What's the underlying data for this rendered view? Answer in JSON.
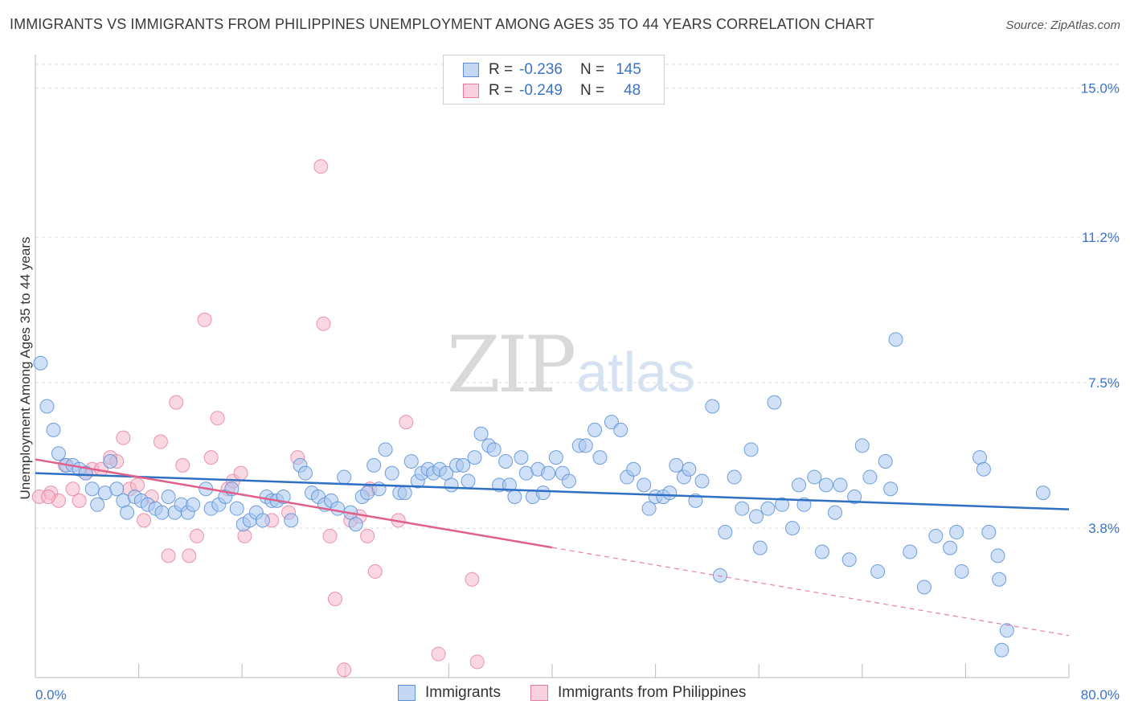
{
  "title": "IMMIGRANTS VS IMMIGRANTS FROM PHILIPPINES UNEMPLOYMENT AMONG AGES 35 TO 44 YEARS CORRELATION CHART",
  "source": "Source: ZipAtlas.com",
  "watermark": {
    "zip": "ZIP",
    "atlas": "atlas"
  },
  "legend_top": [
    {
      "r_label": "R =",
      "r_value": "-0.236",
      "n_label": "N =",
      "n_value": "145"
    },
    {
      "r_label": "R =",
      "r_value": "-0.249",
      "n_label": "N =",
      "n_value": "48"
    }
  ],
  "legend_bottom": [
    "Immigrants",
    "Immigrants from Philippines"
  ],
  "colors": {
    "blue_fill": "#a9c7ef",
    "blue_stroke": "#5b8fd6",
    "blue_line": "#2f6fc4",
    "pink_fill": "#f6b8cb",
    "pink_stroke": "#e67a9c",
    "pink_line": "#e0608a",
    "tick_label": "#3b73c6",
    "grid": "#dddddd"
  },
  "chart_data": {
    "type": "scatter",
    "title": "IMMIGRANTS VS IMMIGRANTS FROM PHILIPPINES UNEMPLOYMENT AMONG AGES 35 TO 44 YEARS CORRELATION CHART",
    "xlabel": "",
    "ylabel": "Unemployment Among Ages 35 to 44 years",
    "xlim": [
      0,
      80
    ],
    "ylim": [
      0,
      15.6
    ],
    "x_tick_labels": [
      "0.0%",
      "80.0%"
    ],
    "y_ticks": [
      3.8,
      7.5,
      11.2,
      15.0
    ],
    "y_tick_labels": [
      "3.8%",
      "7.5%",
      "11.2%",
      "15.0%"
    ],
    "grid": "horizontal dashed",
    "legend_position": "top-center",
    "series": [
      {
        "name": "Immigrants",
        "r": -0.236,
        "n": 145,
        "trend": {
          "x": [
            0,
            80
          ],
          "y": [
            5.2,
            4.28
          ]
        },
        "points": [
          [
            0.4,
            8.0
          ],
          [
            0.9,
            6.9
          ],
          [
            1.4,
            6.3
          ],
          [
            1.8,
            5.7
          ],
          [
            2.4,
            5.4
          ],
          [
            2.9,
            5.4
          ],
          [
            3.4,
            5.3
          ],
          [
            3.9,
            5.2
          ],
          [
            4.4,
            4.8
          ],
          [
            4.8,
            4.4
          ],
          [
            5.4,
            4.7
          ],
          [
            5.8,
            5.5
          ],
          [
            6.3,
            4.8
          ],
          [
            6.8,
            4.5
          ],
          [
            7.1,
            4.2
          ],
          [
            7.7,
            4.6
          ],
          [
            8.2,
            4.5
          ],
          [
            8.7,
            4.4
          ],
          [
            9.3,
            4.3
          ],
          [
            9.8,
            4.2
          ],
          [
            10.3,
            4.6
          ],
          [
            10.8,
            4.2
          ],
          [
            11.3,
            4.4
          ],
          [
            11.8,
            4.2
          ],
          [
            12.2,
            4.4
          ],
          [
            13.2,
            4.8
          ],
          [
            13.6,
            4.3
          ],
          [
            14.2,
            4.4
          ],
          [
            14.7,
            4.6
          ],
          [
            15.2,
            4.8
          ],
          [
            15.6,
            4.3
          ],
          [
            16.1,
            3.9
          ],
          [
            16.6,
            4.0
          ],
          [
            17.1,
            4.2
          ],
          [
            17.6,
            4.0
          ],
          [
            17.9,
            4.6
          ],
          [
            18.3,
            4.5
          ],
          [
            18.7,
            4.5
          ],
          [
            19.2,
            4.6
          ],
          [
            19.8,
            4.0
          ],
          [
            20.5,
            5.4
          ],
          [
            20.9,
            5.2
          ],
          [
            21.4,
            4.7
          ],
          [
            21.9,
            4.6
          ],
          [
            22.4,
            4.4
          ],
          [
            22.9,
            4.5
          ],
          [
            23.4,
            4.3
          ],
          [
            23.9,
            5.1
          ],
          [
            24.4,
            4.2
          ],
          [
            24.8,
            3.9
          ],
          [
            25.3,
            4.6
          ],
          [
            25.7,
            4.7
          ],
          [
            26.2,
            5.4
          ],
          [
            26.6,
            4.8
          ],
          [
            27.1,
            5.8
          ],
          [
            27.6,
            5.2
          ],
          [
            28.2,
            4.7
          ],
          [
            28.6,
            4.7
          ],
          [
            29.1,
            5.5
          ],
          [
            29.6,
            5.0
          ],
          [
            29.9,
            5.2
          ],
          [
            30.4,
            5.3
          ],
          [
            30.8,
            5.2
          ],
          [
            31.3,
            5.3
          ],
          [
            31.8,
            5.2
          ],
          [
            32.2,
            4.9
          ],
          [
            32.6,
            5.4
          ],
          [
            33.1,
            5.4
          ],
          [
            33.5,
            5.0
          ],
          [
            34.0,
            5.6
          ],
          [
            34.5,
            6.2
          ],
          [
            35.1,
            5.9
          ],
          [
            35.5,
            5.8
          ],
          [
            35.9,
            4.9
          ],
          [
            36.4,
            5.5
          ],
          [
            36.7,
            4.9
          ],
          [
            37.1,
            4.6
          ],
          [
            37.6,
            5.6
          ],
          [
            38.0,
            5.2
          ],
          [
            38.5,
            4.6
          ],
          [
            38.9,
            5.3
          ],
          [
            39.3,
            4.7
          ],
          [
            39.7,
            5.2
          ],
          [
            40.3,
            5.6
          ],
          [
            40.8,
            5.2
          ],
          [
            41.3,
            5.0
          ],
          [
            42.1,
            5.9
          ],
          [
            42.6,
            5.9
          ],
          [
            43.3,
            6.3
          ],
          [
            43.7,
            5.6
          ],
          [
            44.6,
            6.5
          ],
          [
            45.3,
            6.3
          ],
          [
            45.8,
            5.1
          ],
          [
            46.3,
            5.3
          ],
          [
            47.1,
            4.9
          ],
          [
            47.5,
            4.3
          ],
          [
            48.0,
            4.6
          ],
          [
            48.6,
            4.6
          ],
          [
            49.1,
            4.7
          ],
          [
            49.6,
            5.4
          ],
          [
            50.2,
            5.1
          ],
          [
            50.6,
            5.3
          ],
          [
            51.1,
            4.5
          ],
          [
            51.6,
            5.0
          ],
          [
            52.4,
            6.9
          ],
          [
            53.0,
            2.6
          ],
          [
            53.4,
            3.7
          ],
          [
            54.1,
            5.1
          ],
          [
            54.7,
            4.3
          ],
          [
            55.4,
            5.8
          ],
          [
            55.8,
            4.1
          ],
          [
            56.1,
            3.3
          ],
          [
            56.7,
            4.3
          ],
          [
            57.2,
            7.0
          ],
          [
            57.8,
            4.4
          ],
          [
            58.6,
            3.8
          ],
          [
            59.1,
            4.9
          ],
          [
            59.5,
            4.4
          ],
          [
            60.3,
            5.1
          ],
          [
            60.9,
            3.2
          ],
          [
            61.2,
            4.9
          ],
          [
            61.9,
            4.2
          ],
          [
            62.3,
            4.9
          ],
          [
            63.0,
            3.0
          ],
          [
            63.4,
            4.6
          ],
          [
            64.0,
            5.9
          ],
          [
            64.6,
            5.1
          ],
          [
            65.2,
            2.7
          ],
          [
            65.8,
            5.5
          ],
          [
            66.2,
            4.8
          ],
          [
            66.6,
            8.6
          ],
          [
            67.7,
            3.2
          ],
          [
            68.8,
            2.3
          ],
          [
            69.7,
            3.6
          ],
          [
            70.8,
            3.3
          ],
          [
            71.3,
            3.7
          ],
          [
            71.7,
            2.7
          ],
          [
            73.1,
            5.6
          ],
          [
            73.4,
            5.3
          ],
          [
            73.8,
            3.7
          ],
          [
            74.5,
            3.1
          ],
          [
            74.6,
            2.5
          ],
          [
            74.8,
            0.7
          ],
          [
            78.0,
            4.7
          ],
          [
            75.2,
            1.2
          ]
        ]
      },
      {
        "name": "Immigrants from Philippines",
        "r": -0.249,
        "n": 48,
        "trend": {
          "x": [
            0,
            40
          ],
          "y": [
            5.55,
            3.31
          ]
        },
        "trend_dashed": {
          "x": [
            40,
            80
          ],
          "y": [
            3.31,
            1.07
          ]
        },
        "points": [
          [
            0.3,
            4.6
          ],
          [
            1.2,
            4.7
          ],
          [
            1.8,
            4.5
          ],
          [
            2.3,
            5.4
          ],
          [
            2.9,
            4.8
          ],
          [
            3.4,
            4.5
          ],
          [
            3.9,
            5.2
          ],
          [
            4.4,
            5.3
          ],
          [
            5.1,
            5.3
          ],
          [
            5.8,
            5.6
          ],
          [
            6.3,
            5.5
          ],
          [
            6.8,
            6.1
          ],
          [
            7.3,
            4.8
          ],
          [
            7.9,
            4.9
          ],
          [
            8.4,
            4.0
          ],
          [
            9.0,
            4.6
          ],
          [
            9.7,
            6.0
          ],
          [
            10.3,
            3.1
          ],
          [
            10.9,
            7.0
          ],
          [
            11.4,
            5.4
          ],
          [
            11.9,
            3.1
          ],
          [
            12.5,
            3.6
          ],
          [
            13.1,
            9.1
          ],
          [
            13.6,
            5.6
          ],
          [
            14.1,
            6.6
          ],
          [
            14.9,
            4.8
          ],
          [
            15.3,
            5.0
          ],
          [
            15.9,
            5.2
          ],
          [
            16.2,
            3.6
          ],
          [
            18.3,
            4.0
          ],
          [
            19.6,
            4.2
          ],
          [
            20.3,
            5.6
          ],
          [
            22.1,
            13.0
          ],
          [
            22.3,
            9.0
          ],
          [
            22.8,
            3.6
          ],
          [
            23.2,
            2.0
          ],
          [
            23.9,
            0.2
          ],
          [
            24.4,
            4.0
          ],
          [
            25.1,
            4.1
          ],
          [
            25.7,
            3.6
          ],
          [
            25.9,
            4.8
          ],
          [
            28.1,
            4.0
          ],
          [
            26.3,
            2.7
          ],
          [
            28.7,
            6.5
          ],
          [
            31.2,
            0.6
          ],
          [
            33.8,
            2.5
          ],
          [
            34.2,
            0.4
          ],
          [
            1.0,
            4.6
          ]
        ]
      }
    ]
  }
}
